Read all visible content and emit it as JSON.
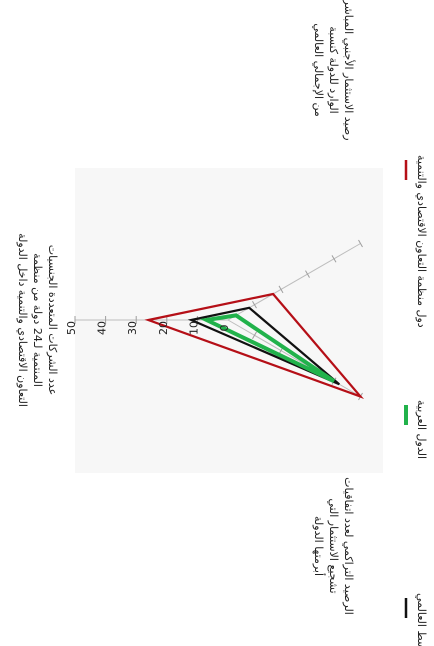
{
  "chart_data": {
    "type": "radar",
    "axes": [
      {
        "label_lines": [
          "عدد الشركات المتعددة الجنسيات",
          "المنتمية لـ24 دولة من منظمة",
          "التعاون الاقتصادي والتنمية داخل الدولة"
        ],
        "ticks": [
          "50",
          "40",
          "30",
          "20",
          "10",
          "0"
        ]
      },
      {
        "label_lines": [
          "رصيد الاستثمار الأجنبي المباشر",
          "الوارد للدولة كنسبة",
          "من الإجمالي العالمي"
        ],
        "ticks": []
      },
      {
        "label_lines": [
          "الرصيد التراكمي لعدد اتفاقيات",
          "تشجيع الاستثمار التي",
          "أبرمتها الدولة"
        ],
        "ticks": []
      }
    ],
    "scale_max": 50,
    "series": [
      {
        "name": "المتوسط العالمي",
        "color": "#111111",
        "values": [
          12,
          8,
          42
        ]
      },
      {
        "name": "الدول العربية",
        "color": "#21b24b",
        "values": [
          7,
          3,
          40
        ]
      },
      {
        "name": "دول منظمة التعاون الاقتصادي والتنمية",
        "color": "#b50f17",
        "values": [
          26,
          17,
          50
        ]
      }
    ],
    "legend_position": "bottom"
  }
}
